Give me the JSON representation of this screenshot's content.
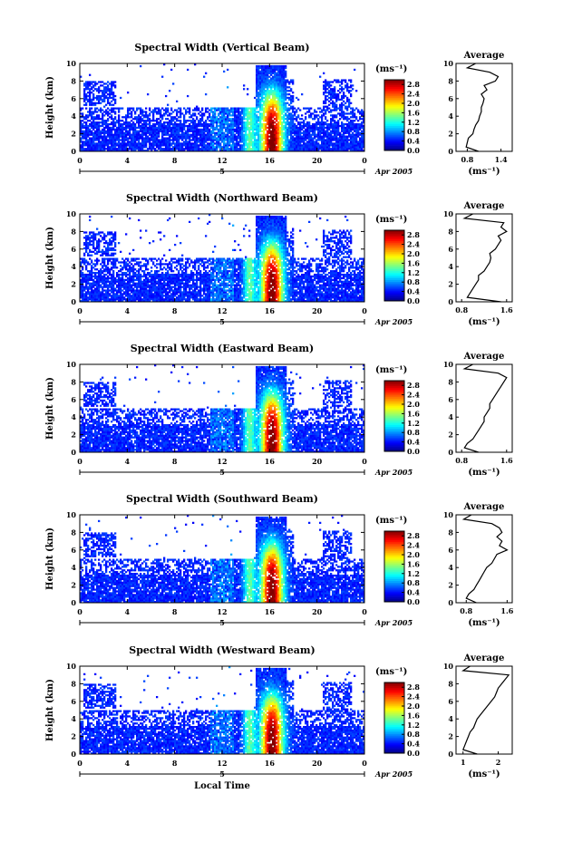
{
  "chart_data": [
    {
      "type": "heatmap",
      "title": "Spectral Width (Vertical Beam)",
      "ylabel": "Height (km)",
      "x_ticks": [
        "0",
        "4",
        "8",
        "12",
        "16",
        "20",
        "0"
      ],
      "y_ticks": [
        "0",
        "2",
        "4",
        "6",
        "8",
        "10"
      ],
      "xlim": [
        0,
        24
      ],
      "ylim": [
        0,
        10
      ],
      "date_label": "5",
      "month_label": "Apr 2005",
      "colorbar": {
        "unit": "(ms⁻¹)",
        "ticks": [
          "0.0",
          "0.4",
          "0.8",
          "1.2",
          "1.6",
          "2.0",
          "2.4",
          "2.8"
        ],
        "range": [
          0,
          3.0
        ]
      },
      "profile": {
        "title": "Average",
        "xlabel": "(ms⁻¹)",
        "x_ticks": [
          "0.8",
          "1.4"
        ],
        "xlim": [
          0.6,
          1.6
        ],
        "y_ticks": [
          "0",
          "2",
          "4",
          "6",
          "8",
          "10"
        ],
        "heights": [
          0,
          0.5,
          1,
          1.5,
          2,
          2.5,
          3,
          3.5,
          4,
          4.5,
          5,
          5.5,
          6,
          6.5,
          7,
          7.5,
          8,
          8.5,
          9,
          9.5,
          10
        ],
        "values": [
          1.0,
          0.78,
          0.8,
          0.82,
          0.9,
          0.92,
          0.95,
          1.0,
          1.02,
          1.05,
          1.05,
          1.08,
          1.1,
          1.05,
          1.15,
          1.1,
          1.3,
          1.35,
          1.2,
          0.8,
          0.95
        ]
      }
    },
    {
      "type": "heatmap",
      "title": "Spectral Width (Northward Beam)",
      "ylabel": "Height (km)",
      "x_ticks": [
        "0",
        "4",
        "8",
        "12",
        "16",
        "20",
        "0"
      ],
      "y_ticks": [
        "0",
        "2",
        "4",
        "6",
        "8",
        "10"
      ],
      "xlim": [
        0,
        24
      ],
      "ylim": [
        0,
        10
      ],
      "date_label": "5",
      "month_label": "Apr 2005",
      "colorbar": {
        "unit": "(ms⁻¹)",
        "ticks": [
          "0.0",
          "0.4",
          "0.8",
          "1.2",
          "1.6",
          "2.0",
          "2.4",
          "2.8"
        ],
        "range": [
          0,
          3.0
        ]
      },
      "profile": {
        "title": "Average",
        "xlabel": "(ms⁻¹)",
        "x_ticks": [
          "0.8",
          "1.6"
        ],
        "xlim": [
          0.7,
          1.7
        ],
        "y_ticks": [
          "0",
          "2",
          "4",
          "6",
          "8",
          "10"
        ],
        "heights": [
          0,
          0.5,
          1,
          1.5,
          2,
          2.5,
          3,
          3.5,
          4,
          4.5,
          5,
          5.5,
          6,
          6.5,
          7,
          7.5,
          8,
          8.5,
          9,
          9.5,
          10
        ],
        "values": [
          1.5,
          0.9,
          0.95,
          1.0,
          1.05,
          1.1,
          1.1,
          1.2,
          1.25,
          1.3,
          1.32,
          1.3,
          1.4,
          1.45,
          1.5,
          1.45,
          1.6,
          1.5,
          1.55,
          0.85,
          1.0
        ]
      }
    },
    {
      "type": "heatmap",
      "title": "Spectral Width (Eastward Beam)",
      "ylabel": "Height (km)",
      "x_ticks": [
        "0",
        "4",
        "8",
        "12",
        "16",
        "20",
        "0"
      ],
      "y_ticks": [
        "0",
        "2",
        "4",
        "6",
        "8",
        "10"
      ],
      "xlim": [
        0,
        24
      ],
      "ylim": [
        0,
        10
      ],
      "date_label": "5",
      "month_label": "Apr 2005",
      "colorbar": {
        "unit": "(ms⁻¹)",
        "ticks": [
          "0.0",
          "0.4",
          "0.8",
          "1.2",
          "1.6",
          "2.0",
          "2.4",
          "2.8"
        ],
        "range": [
          0,
          3.0
        ]
      },
      "profile": {
        "title": "Average",
        "xlabel": "(ms⁻¹)",
        "x_ticks": [
          "0.8",
          "1.6"
        ],
        "xlim": [
          0.7,
          1.7
        ],
        "y_ticks": [
          "0",
          "2",
          "4",
          "6",
          "8",
          "10"
        ],
        "heights": [
          0,
          0.5,
          1,
          1.5,
          2,
          2.5,
          3,
          3.5,
          4,
          4.5,
          5,
          5.5,
          6,
          6.5,
          7,
          7.5,
          8,
          8.5,
          9,
          9.5,
          10
        ],
        "values": [
          1.1,
          0.85,
          0.9,
          1.0,
          1.05,
          1.1,
          1.15,
          1.2,
          1.2,
          1.25,
          1.3,
          1.3,
          1.35,
          1.4,
          1.45,
          1.5,
          1.55,
          1.6,
          1.45,
          0.85,
          1.0
        ]
      }
    },
    {
      "type": "heatmap",
      "title": "Spectral Width (Southward Beam)",
      "ylabel": "Height (km)",
      "x_ticks": [
        "0",
        "4",
        "8",
        "12",
        "16",
        "20",
        "0"
      ],
      "y_ticks": [
        "0",
        "2",
        "4",
        "6",
        "8",
        "10"
      ],
      "xlim": [
        0,
        24
      ],
      "ylim": [
        0,
        10
      ],
      "date_label": "5",
      "month_label": "Apr 2005",
      "colorbar": {
        "unit": "(ms⁻¹)",
        "ticks": [
          "0.0",
          "0.4",
          "0.8",
          "1.2",
          "1.6",
          "2.0",
          "2.4",
          "2.8"
        ],
        "range": [
          0,
          3.0
        ]
      },
      "profile": {
        "title": "Average",
        "xlabel": "(ms⁻¹)",
        "x_ticks": [
          "0.8",
          "1.6"
        ],
        "xlim": [
          0.6,
          1.7
        ],
        "y_ticks": [
          "0",
          "2",
          "4",
          "6",
          "8",
          "10"
        ],
        "heights": [
          0,
          0.5,
          1,
          1.5,
          2,
          2.5,
          3,
          3.5,
          4,
          4.5,
          5,
          5.5,
          6,
          6.5,
          7,
          7.5,
          8,
          8.5,
          9,
          9.5,
          10
        ],
        "values": [
          1.0,
          0.8,
          0.85,
          0.95,
          1.0,
          1.05,
          1.1,
          1.15,
          1.2,
          1.3,
          1.35,
          1.4,
          1.6,
          1.45,
          1.5,
          1.4,
          1.5,
          1.45,
          1.3,
          0.75,
          0.9
        ]
      }
    },
    {
      "type": "heatmap",
      "title": "Spectral Width (Westward Beam)",
      "ylabel": "Height (km)",
      "xlabel": "Local Time",
      "x_ticks": [
        "0",
        "4",
        "8",
        "12",
        "16",
        "20",
        "0"
      ],
      "y_ticks": [
        "0",
        "2",
        "4",
        "6",
        "8",
        "10"
      ],
      "xlim": [
        0,
        24
      ],
      "ylim": [
        0,
        10
      ],
      "date_label": "5",
      "month_label": "Apr 2005",
      "colorbar": {
        "unit": "(ms⁻¹)",
        "ticks": [
          "0.0",
          "0.4",
          "0.8",
          "1.2",
          "1.6",
          "2.0",
          "2.4",
          "2.8"
        ],
        "range": [
          0,
          3.0
        ]
      },
      "profile": {
        "title": "Average",
        "xlabel": "(ms⁻¹)",
        "x_ticks": [
          "1",
          "2"
        ],
        "xlim": [
          0.8,
          2.4
        ],
        "y_ticks": [
          "0",
          "2",
          "4",
          "6",
          "8",
          "10"
        ],
        "heights": [
          0,
          0.5,
          1,
          1.5,
          2,
          2.5,
          3,
          3.5,
          4,
          4.5,
          5,
          5.5,
          6,
          6.5,
          7,
          7.5,
          8,
          8.5,
          9,
          9.5,
          10
        ],
        "values": [
          1.4,
          1.0,
          1.05,
          1.1,
          1.15,
          1.2,
          1.3,
          1.35,
          1.4,
          1.5,
          1.6,
          1.7,
          1.8,
          1.9,
          1.95,
          2.0,
          2.1,
          2.2,
          2.3,
          1.0,
          1.2
        ]
      }
    }
  ]
}
